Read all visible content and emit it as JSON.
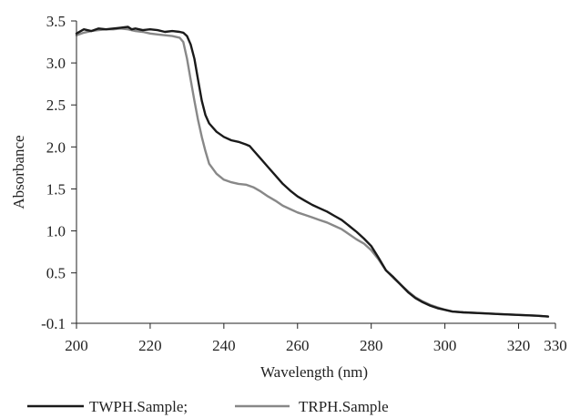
{
  "chart_data": {
    "type": "line",
    "xlabel": "Wavelength (nm)",
    "ylabel": "Absorbance",
    "xlim": [
      200,
      330
    ],
    "ylim": [
      -0.1,
      3.5
    ],
    "x_ticks": [
      200,
      220,
      240,
      260,
      280,
      300,
      320,
      330
    ],
    "y_ticks": [
      -0.1,
      0.5,
      1.0,
      1.5,
      2.0,
      2.5,
      3.0,
      3.5
    ],
    "x_tick_labels": [
      "200",
      "220",
      "240",
      "260",
      "280",
      "300",
      "320",
      "330"
    ],
    "y_tick_labels": [
      "-0.1",
      "0.5",
      "1.0",
      "1.5",
      "2.0",
      "2.5",
      "3.0",
      "3.5"
    ],
    "grid": false,
    "legend_position": "bottom-left",
    "series": [
      {
        "name": "TWPH.Sample;",
        "color": "#1a1a1a",
        "x": [
          200,
          202,
          204,
          206,
          208,
          210,
          212,
          214,
          215,
          216,
          218,
          220,
          222,
          224,
          226,
          228,
          229,
          230,
          231,
          232,
          233,
          234,
          235,
          236,
          238,
          240,
          242,
          244,
          246,
          247,
          248,
          250,
          252,
          254,
          256,
          258,
          260,
          262,
          264,
          266,
          268,
          270,
          272,
          274,
          276,
          278,
          280,
          282,
          284,
          286,
          288,
          290,
          292,
          294,
          296,
          298,
          300,
          302,
          305,
          310,
          315,
          320,
          325,
          328
        ],
        "y": [
          3.35,
          3.4,
          3.38,
          3.41,
          3.4,
          3.41,
          3.42,
          3.43,
          3.4,
          3.41,
          3.39,
          3.4,
          3.39,
          3.37,
          3.38,
          3.37,
          3.36,
          3.32,
          3.22,
          3.05,
          2.8,
          2.55,
          2.38,
          2.28,
          2.18,
          2.12,
          2.08,
          2.06,
          2.03,
          2.01,
          1.96,
          1.86,
          1.76,
          1.66,
          1.56,
          1.48,
          1.41,
          1.36,
          1.31,
          1.27,
          1.23,
          1.18,
          1.13,
          1.06,
          0.99,
          0.91,
          0.82,
          0.68,
          0.53,
          0.45,
          0.36,
          0.27,
          0.2,
          0.15,
          0.11,
          0.08,
          0.06,
          0.04,
          0.03,
          0.02,
          0.01,
          0.0,
          -0.01,
          -0.02
        ]
      },
      {
        "name": "TRPH.Sample",
        "color": "#888888",
        "x": [
          200,
          202,
          204,
          206,
          208,
          210,
          212,
          214,
          216,
          218,
          220,
          222,
          224,
          226,
          228,
          229,
          230,
          231,
          232,
          233,
          234,
          235,
          236,
          238,
          240,
          242,
          244,
          246,
          248,
          250,
          252,
          254,
          256,
          258,
          260,
          262,
          264,
          266,
          268,
          270,
          272,
          274,
          276,
          278,
          280,
          282,
          284,
          286,
          288,
          290,
          292,
          294,
          296,
          298,
          300,
          302,
          305,
          310,
          315,
          320,
          325,
          328
        ],
        "y": [
          3.33,
          3.36,
          3.38,
          3.39,
          3.4,
          3.4,
          3.41,
          3.4,
          3.38,
          3.37,
          3.35,
          3.34,
          3.33,
          3.32,
          3.3,
          3.25,
          3.05,
          2.8,
          2.55,
          2.32,
          2.12,
          1.95,
          1.8,
          1.68,
          1.61,
          1.58,
          1.56,
          1.55,
          1.52,
          1.47,
          1.41,
          1.36,
          1.3,
          1.26,
          1.22,
          1.19,
          1.16,
          1.13,
          1.1,
          1.06,
          1.02,
          0.96,
          0.9,
          0.85,
          0.77,
          0.66,
          0.53,
          0.44,
          0.36,
          0.28,
          0.21,
          0.16,
          0.12,
          0.09,
          0.06,
          0.04,
          0.03,
          0.02,
          0.01,
          0.0,
          -0.01,
          -0.02
        ]
      }
    ]
  }
}
